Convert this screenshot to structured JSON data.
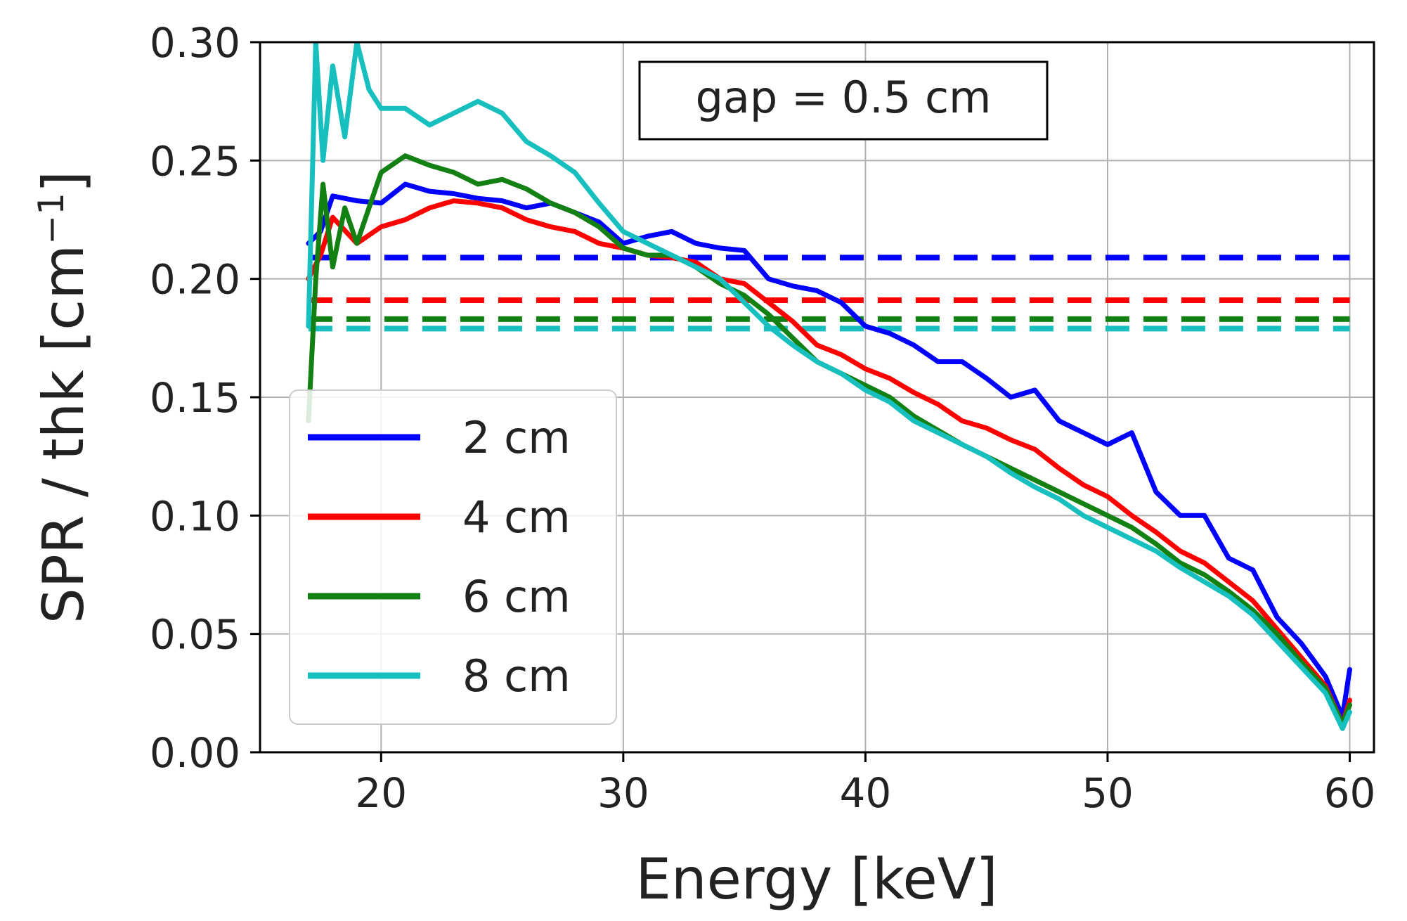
{
  "chart_data": {
    "type": "line",
    "title": "",
    "annotation": "gap = 0.5 cm",
    "xlabel": "Energy [keV]",
    "ylabel_main": "SPR / thk [cm",
    "ylabel_sup": "−1",
    "ylabel_end": "]",
    "xlim": [
      15,
      61
    ],
    "ylim": [
      0,
      0.3
    ],
    "x_ticks": [
      20,
      30,
      40,
      50,
      60
    ],
    "x_tick_labels": [
      "20",
      "30",
      "40",
      "50",
      "60"
    ],
    "y_ticks": [
      0,
      0.05,
      0.1,
      0.15,
      0.2,
      0.25,
      0.3
    ],
    "y_tick_labels": [
      "0.00",
      "0.05",
      "0.10",
      "0.15",
      "0.20",
      "0.25",
      "0.30"
    ],
    "grid": true,
    "legend_position": "lower-left",
    "series": [
      {
        "name": "2 cm",
        "color": "#0000ff",
        "x": [
          17,
          17.5,
          18,
          19,
          20,
          21,
          22,
          23,
          24,
          25,
          26,
          27,
          28,
          29,
          30,
          31,
          32,
          33,
          34,
          35,
          36,
          37,
          38,
          39,
          40,
          41,
          42,
          43,
          44,
          45,
          46,
          47,
          48,
          49,
          50,
          51,
          52,
          53,
          54,
          55,
          56,
          57,
          58,
          59,
          59.7,
          60
        ],
        "y": [
          0.215,
          0.22,
          0.235,
          0.233,
          0.232,
          0.24,
          0.237,
          0.236,
          0.234,
          0.233,
          0.23,
          0.232,
          0.228,
          0.224,
          0.215,
          0.218,
          0.22,
          0.215,
          0.213,
          0.212,
          0.2,
          0.197,
          0.195,
          0.19,
          0.18,
          0.177,
          0.172,
          0.165,
          0.165,
          0.158,
          0.15,
          0.153,
          0.14,
          0.135,
          0.13,
          0.135,
          0.11,
          0.1,
          0.1,
          0.082,
          0.077,
          0.057,
          0.046,
          0.032,
          0.015,
          0.035
        ]
      },
      {
        "name": "4 cm",
        "color": "#ff0000",
        "x": [
          17,
          17.5,
          18,
          19,
          20,
          21,
          22,
          23,
          24,
          25,
          26,
          27,
          28,
          29,
          30,
          31,
          32,
          33,
          34,
          35,
          36,
          37,
          38,
          39,
          40,
          41,
          42,
          43,
          44,
          45,
          46,
          47,
          48,
          49,
          50,
          51,
          52,
          53,
          54,
          55,
          56,
          57,
          58,
          59,
          59.7,
          60
        ],
        "y": [
          0.2,
          0.21,
          0.226,
          0.215,
          0.222,
          0.225,
          0.23,
          0.233,
          0.232,
          0.23,
          0.225,
          0.222,
          0.22,
          0.215,
          0.213,
          0.21,
          0.209,
          0.207,
          0.2,
          0.198,
          0.19,
          0.182,
          0.172,
          0.168,
          0.162,
          0.158,
          0.152,
          0.147,
          0.14,
          0.137,
          0.132,
          0.128,
          0.12,
          0.113,
          0.108,
          0.1,
          0.093,
          0.085,
          0.08,
          0.072,
          0.064,
          0.052,
          0.04,
          0.028,
          0.012,
          0.022
        ]
      },
      {
        "name": "6 cm",
        "color": "#138013",
        "x": [
          17,
          17.3,
          17.6,
          18,
          18.5,
          19,
          20,
          21,
          22,
          23,
          24,
          25,
          26,
          27,
          28,
          29,
          30,
          31,
          32,
          33,
          34,
          35,
          36,
          37,
          38,
          39,
          40,
          41,
          42,
          43,
          44,
          45,
          46,
          47,
          48,
          49,
          50,
          51,
          52,
          53,
          54,
          55,
          56,
          57,
          58,
          59,
          59.7,
          60
        ],
        "y": [
          0.14,
          0.2,
          0.24,
          0.205,
          0.23,
          0.215,
          0.245,
          0.252,
          0.248,
          0.245,
          0.24,
          0.242,
          0.238,
          0.232,
          0.228,
          0.222,
          0.213,
          0.21,
          0.21,
          0.205,
          0.198,
          0.193,
          0.185,
          0.175,
          0.165,
          0.16,
          0.155,
          0.15,
          0.142,
          0.136,
          0.13,
          0.125,
          0.12,
          0.115,
          0.11,
          0.105,
          0.1,
          0.095,
          0.088,
          0.08,
          0.075,
          0.068,
          0.06,
          0.05,
          0.038,
          0.027,
          0.012,
          0.02
        ]
      },
      {
        "name": "8 cm",
        "color": "#17bfbf",
        "x": [
          17,
          17.3,
          17.6,
          18,
          18.5,
          19,
          19.5,
          20,
          21,
          22,
          23,
          24,
          25,
          26,
          27,
          28,
          29,
          30,
          31,
          32,
          33,
          34,
          35,
          36,
          37,
          38,
          39,
          40,
          41,
          42,
          43,
          44,
          45,
          46,
          47,
          48,
          49,
          50,
          51,
          52,
          53,
          54,
          55,
          56,
          57,
          58,
          59,
          59.7,
          60
        ],
        "y": [
          0.18,
          0.3,
          0.25,
          0.29,
          0.26,
          0.3,
          0.28,
          0.272,
          0.272,
          0.265,
          0.27,
          0.275,
          0.27,
          0.258,
          0.252,
          0.245,
          0.232,
          0.22,
          0.215,
          0.21,
          0.205,
          0.2,
          0.19,
          0.18,
          0.172,
          0.165,
          0.16,
          0.153,
          0.148,
          0.14,
          0.135,
          0.13,
          0.125,
          0.118,
          0.112,
          0.107,
          0.1,
          0.095,
          0.09,
          0.085,
          0.078,
          0.072,
          0.066,
          0.058,
          0.047,
          0.036,
          0.025,
          0.01,
          0.017
        ]
      }
    ],
    "reference_lines": [
      {
        "name": "2 cm",
        "color": "#0000ff",
        "y": 0.209,
        "x_start": 17,
        "x_end": 60
      },
      {
        "name": "4 cm",
        "color": "#ff0000",
        "y": 0.191,
        "x_start": 17,
        "x_end": 60
      },
      {
        "name": "6 cm",
        "color": "#138013",
        "y": 0.183,
        "x_start": 17,
        "x_end": 60
      },
      {
        "name": "8 cm",
        "color": "#17bfbf",
        "y": 0.179,
        "x_start": 17,
        "x_end": 60
      }
    ]
  }
}
